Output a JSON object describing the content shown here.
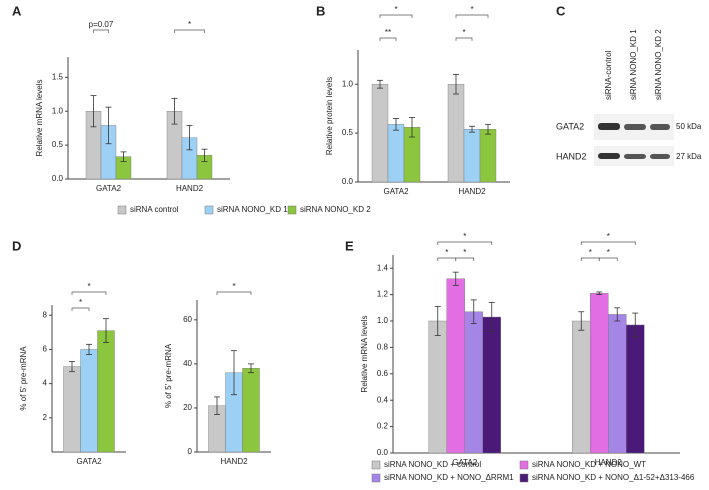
{
  "panel_labels": [
    "A",
    "B",
    "C",
    "D",
    "E"
  ],
  "blot": {
    "lanes": [
      "siRNA-control",
      "siRNA NONO_KD 1",
      "siRNA NONO_KD 2"
    ],
    "rows": [
      {
        "protein": "GATA2",
        "size": "50 kDa"
      },
      {
        "protein": "HAND2",
        "size": "27 kDa"
      }
    ]
  },
  "chart_data": [
    {
      "type": "bar",
      "ylabel": "Relative mRNA levels",
      "categories": [
        "GATA2",
        "HAND2"
      ],
      "ylim": [
        0,
        1.8
      ],
      "yticks": [
        {
          "value": 0,
          "label": "0.0"
        },
        0.5,
        {
          "value": 1,
          "label": "1.0"
        },
        1.5
      ],
      "legend": true,
      "annotations": [
        "p=0.07",
        "*"
      ],
      "series": [
        {
          "name": "siRNA control",
          "color": "#c8c8c8",
          "values": [
            1.0,
            1.0
          ],
          "errors": [
            0.23,
            0.19
          ]
        },
        {
          "name": "siRNA NONO_KD 1",
          "color": "#9dd0f5",
          "values": [
            0.79,
            0.61
          ],
          "errors": [
            0.27,
            0.18
          ]
        },
        {
          "name": "siRNA NONO_KD 2",
          "color": "#8cc63f",
          "values": [
            0.33,
            0.35
          ],
          "errors": [
            0.07,
            0.09
          ]
        }
      ]
    },
    {
      "type": "bar",
      "ylabel": "Relative protein levels",
      "categories": [
        "GATA2",
        "HAND2"
      ],
      "ylim": [
        0,
        1.35
      ],
      "yticks": [
        {
          "value": 0,
          "label": "0.0"
        },
        0.5,
        {
          "value": 1,
          "label": "1.0"
        }
      ],
      "annotations": [
        "*",
        "**",
        "*",
        "*"
      ],
      "series": [
        {
          "color": "#c8c8c8",
          "values": [
            1.0,
            1.0
          ],
          "errors": [
            0.04,
            0.1
          ]
        },
        {
          "color": "#9dd0f5",
          "values": [
            0.59,
            0.54
          ],
          "errors": [
            0.06,
            0.03
          ]
        },
        {
          "color": "#8cc63f",
          "values": [
            0.56,
            0.54
          ],
          "errors": [
            0.1,
            0.05
          ]
        }
      ]
    },
    {
      "type": "bar",
      "ylabel": "% of 5' pre-mRNA",
      "categories": [
        "GATA2"
      ],
      "ylim": [
        0,
        8.6
      ],
      "yticks": [
        2,
        4,
        6,
        8
      ],
      "annotations": [
        "*",
        "*"
      ],
      "series": [
        {
          "color": "#c8c8c8",
          "values": [
            5.0
          ],
          "errors": [
            0.3
          ]
        },
        {
          "color": "#9dd0f5",
          "values": [
            6.0
          ],
          "errors": [
            0.3
          ]
        },
        {
          "color": "#8cc63f",
          "values": [
            7.1
          ],
          "errors": [
            0.7
          ]
        }
      ]
    },
    {
      "type": "bar",
      "ylabel": "% of 5' pre-mRNA",
      "categories": [
        "HAND2"
      ],
      "ylim": [
        0,
        69
      ],
      "yticks": [
        0,
        20,
        40,
        60
      ],
      "annotations": [
        "*"
      ],
      "series": [
        {
          "color": "#c8c8c8",
          "values": [
            21
          ],
          "errors": [
            4
          ]
        },
        {
          "color": "#9dd0f5",
          "values": [
            36
          ],
          "errors": [
            10
          ]
        },
        {
          "color": "#8cc63f",
          "values": [
            38
          ],
          "errors": [
            2
          ]
        }
      ]
    },
    {
      "type": "bar",
      "ylabel": "Relative mRNA levels",
      "categories": [
        "GATA2",
        "HAND2"
      ],
      "ylim": [
        0,
        1.5
      ],
      "yticks": [
        {
          "value": 0,
          "label": "0.0"
        },
        0.2,
        0.4,
        0.6,
        0.8,
        {
          "value": 1,
          "label": "1.0"
        },
        1.2,
        1.4
      ],
      "legend": true,
      "annotations": [
        "*",
        "*",
        "*",
        "*",
        "*",
        "*"
      ],
      "series": [
        {
          "name": "siRNA NONO_KD + control",
          "color": "#c8c8c8",
          "values": [
            1.0,
            1.0
          ],
          "errors": [
            0.11,
            0.07
          ]
        },
        {
          "name": "siRNA NONO_KD + NONO_WT",
          "color": "#e36ee3",
          "values": [
            1.32,
            1.21
          ],
          "errors": [
            0.05,
            0.01
          ]
        },
        {
          "name": "siRNA NONO_KD + NONO_ΔRRM1",
          "color": "#a586e6",
          "values": [
            1.07,
            1.05
          ],
          "errors": [
            0.09,
            0.05
          ]
        },
        {
          "name": "siRNA NONO_KD + NONO_Δ1-52+Δ313-466",
          "color": "#4b1a78",
          "values": [
            1.03,
            0.97
          ],
          "errors": [
            0.11,
            0.09
          ]
        }
      ]
    }
  ]
}
